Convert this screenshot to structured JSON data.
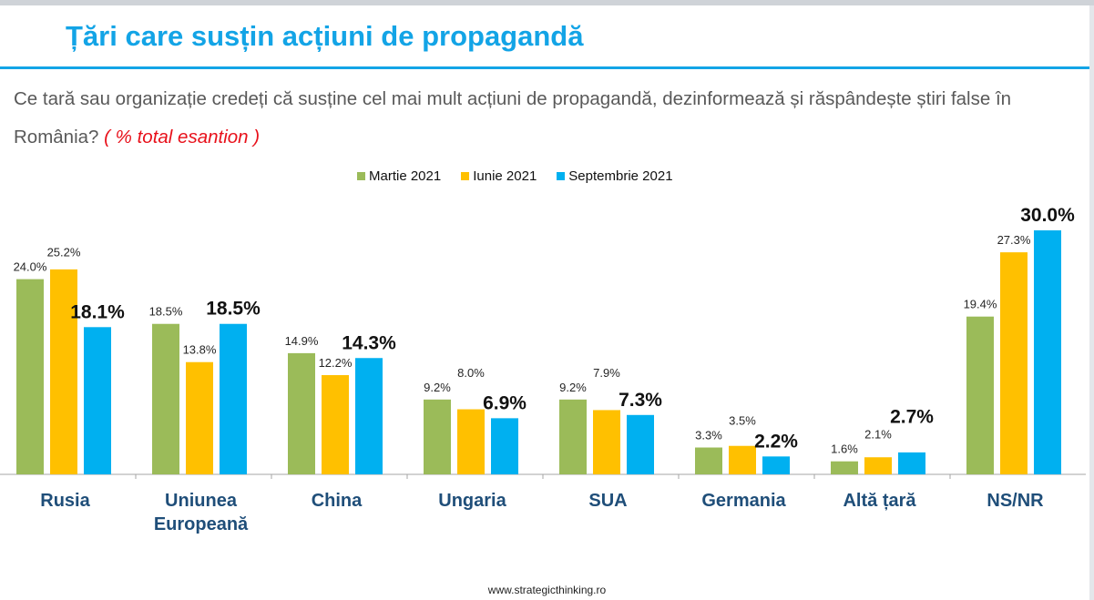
{
  "title": "Țări care susțin acțiuni de propagandă",
  "question": "Ce tară sau organizație credeți că susține cel mai mult acțiuni de propagandă, dezinformează și răspândește știri false în România?",
  "question_note": "( % total esantion )",
  "footer": "www.strategicthinking.ro",
  "colors": {
    "title": "#13a4e6",
    "note": "#e8101a"
  },
  "chart_data": {
    "type": "bar",
    "categories": [
      [
        "Rusia"
      ],
      [
        "Uniunea",
        "Europeană"
      ],
      [
        "China"
      ],
      [
        "Ungaria"
      ],
      [
        "SUA"
      ],
      [
        "Germania"
      ],
      [
        "Altă țară"
      ],
      [
        "NS/NR"
      ]
    ],
    "series": [
      {
        "name": "Martie 2021",
        "color": "#9bbb59",
        "values": [
          24.0,
          18.5,
          14.9,
          9.2,
          9.2,
          3.3,
          1.6,
          19.4
        ],
        "labels": [
          "24.0%",
          "18.5%",
          "14.9%",
          "9.2%",
          "9.2%",
          "3.3%",
          "1.6%",
          "19.4%"
        ]
      },
      {
        "name": "Iunie 2021",
        "color": "#ffc000",
        "values": [
          25.2,
          13.8,
          12.2,
          8.0,
          7.9,
          3.5,
          2.1,
          27.3
        ],
        "labels": [
          "25.2%",
          "13.8%",
          "12.2%",
          "8.0%",
          "7.9%",
          "3.5%",
          "2.1%",
          "27.3%"
        ]
      },
      {
        "name": "Septembrie 2021",
        "color": "#00b0f0",
        "values": [
          18.1,
          18.5,
          14.3,
          6.9,
          7.3,
          2.2,
          2.7,
          30.0
        ],
        "labels": [
          "18.1%",
          "18.5%",
          "14.3%",
          "6.9%",
          "7.3%",
          "2.2%",
          "2.7%",
          "30.0%"
        ]
      }
    ],
    "ylim": [
      0,
      30
    ],
    "legend": "top-center",
    "grid": false
  }
}
